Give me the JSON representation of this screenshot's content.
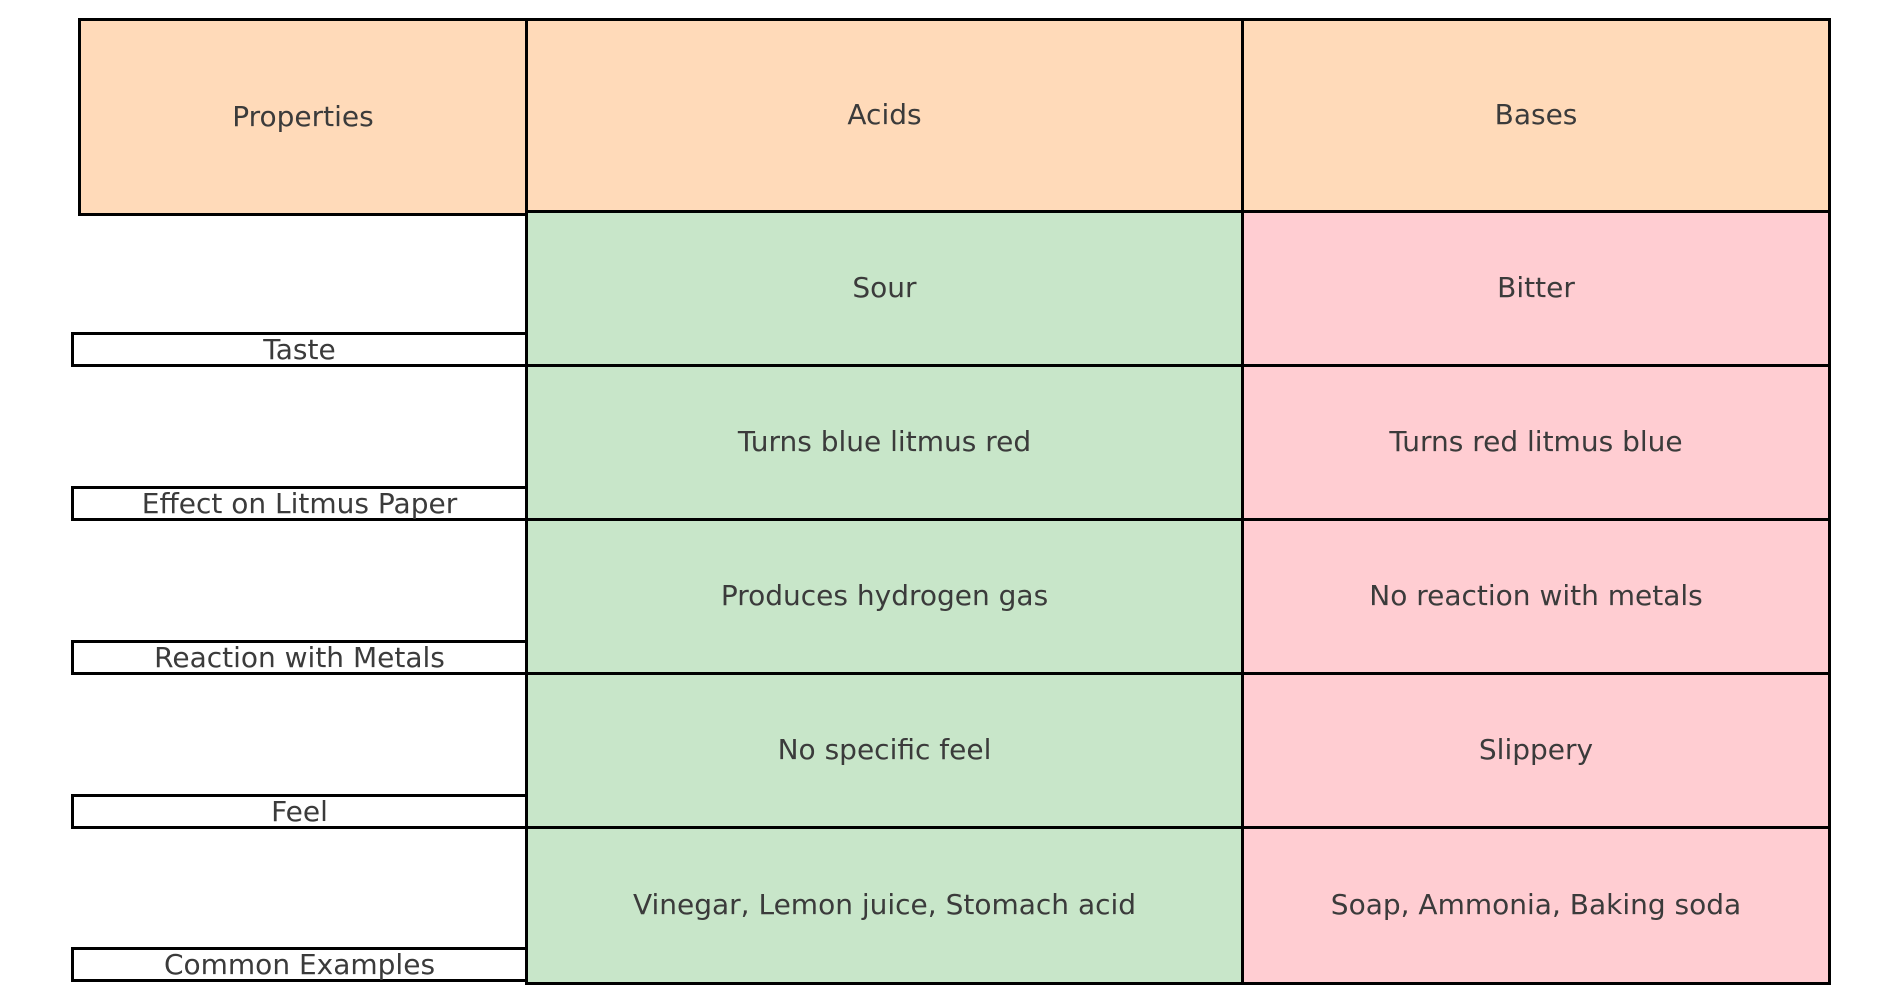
{
  "table": {
    "header": {
      "properties": "Properties",
      "acids": "Acids",
      "bases": "Bases"
    },
    "rows": [
      {
        "property": "Taste",
        "acid": "Sour",
        "base": "Bitter"
      },
      {
        "property": "Effect on Litmus Paper",
        "acid": "Turns blue litmus red",
        "base": "Turns red litmus blue"
      },
      {
        "property": "Reaction with Metals",
        "acid": "Produces hydrogen gas",
        "base": "No reaction with metals"
      },
      {
        "property": "Feel",
        "acid": "No specific feel",
        "base": "Slippery"
      },
      {
        "property": "Common Examples",
        "acid": "Vinegar, Lemon juice, Stomach acid",
        "base": "Soap, Ammonia, Baking soda"
      }
    ],
    "colors": {
      "header_bg": "#ffdab9",
      "acids_bg": "#c8e6c9",
      "bases_bg": "#ffcdd2",
      "label_bg": "#ffffff",
      "border": "#000000",
      "text": "#3b3b3b"
    }
  },
  "chart_data": {
    "type": "table",
    "columns": [
      "Properties",
      "Acids",
      "Bases"
    ],
    "rows": [
      [
        "Taste",
        "Sour",
        "Bitter"
      ],
      [
        "Effect on Litmus Paper",
        "Turns blue litmus red",
        "Turns red litmus blue"
      ],
      [
        "Reaction with Metals",
        "Produces hydrogen gas",
        "No reaction with metals"
      ],
      [
        "Feel",
        "No specific feel",
        "Slippery"
      ],
      [
        "Common Examples",
        "Vinegar, Lemon juice, Stomach acid",
        "Soap, Ammonia, Baking soda"
      ]
    ],
    "title": "",
    "layout": {
      "header_fill": "#ffdab9",
      "acids_column_fill": "#c8e6c9",
      "bases_column_fill": "#ffcdd2",
      "row_label_style": "thin white boxes anchored to bottom of each row",
      "grid": "black cell borders"
    }
  }
}
